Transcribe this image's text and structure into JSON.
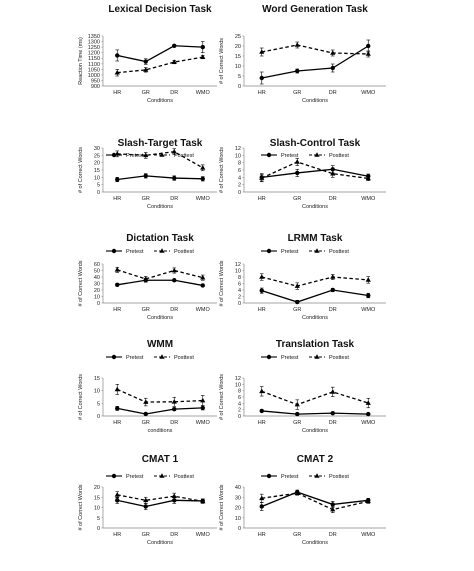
{
  "chart_data": [
    {
      "type": "line",
      "title": "Lexical Decision Task",
      "xlabel": "Conditions",
      "ylabel": "Reaction Time (ms)",
      "categories": [
        "HR",
        "GR",
        "DR",
        "WMO"
      ],
      "yticks": [
        900,
        950,
        1000,
        1050,
        1100,
        1150,
        1200,
        1250,
        1300,
        1350
      ],
      "ylim": [
        900,
        1350
      ],
      "series": [
        {
          "name": "",
          "style": "solid",
          "marker": "circle",
          "values": [
            1175,
            1120,
            1262,
            1250
          ],
          "errors": [
            50,
            25,
            10,
            50
          ]
        },
        {
          "name": "",
          "style": "dashed",
          "marker": "triangle",
          "values": [
            1020,
            1045,
            1115,
            1160
          ],
          "errors": [
            30,
            20,
            15,
            15
          ]
        }
      ],
      "legend": false
    },
    {
      "type": "line",
      "title": "Word Generation Task",
      "xlabel": "Conditions",
      "ylabel": "# of Correct Words",
      "categories": [
        "HR",
        "GR",
        "DR",
        "WMO"
      ],
      "yticks": [
        0,
        5,
        10,
        15,
        20,
        25
      ],
      "ylim": [
        0,
        25
      ],
      "series": [
        {
          "name": "Pretest",
          "style": "solid",
          "marker": "circle",
          "values": [
            4,
            7.5,
            9,
            20
          ],
          "errors": [
            3,
            1,
            2,
            3
          ]
        },
        {
          "name": "Posttest",
          "style": "dashed",
          "marker": "triangle",
          "values": [
            17,
            20.5,
            16.5,
            16
          ],
          "errors": [
            2,
            1.5,
            1.5,
            1.5
          ]
        }
      ],
      "legend": true
    },
    {
      "type": "line",
      "title": "Slash-Target Task",
      "xlabel": "Conditions",
      "ylabel": "# of Correct Words",
      "categories": [
        "HR",
        "GR",
        "DR",
        "WMO"
      ],
      "yticks": [
        0,
        5,
        10,
        15,
        20,
        25,
        30
      ],
      "ylim": [
        0,
        30
      ],
      "series": [
        {
          "name": "Pretest",
          "style": "solid",
          "marker": "circle",
          "values": [
            8.5,
            11,
            9.5,
            9
          ],
          "errors": [
            1.5,
            1.5,
            1.5,
            1.5
          ]
        },
        {
          "name": "Posttest",
          "style": "dashed",
          "marker": "triangle",
          "values": [
            26,
            25,
            27.5,
            16.5
          ],
          "errors": [
            2,
            2,
            2,
            2
          ]
        }
      ],
      "legend": true
    },
    {
      "type": "line",
      "title": "Slash-Control Task",
      "xlabel": "Conditions",
      "ylabel": "# of Correct Words",
      "categories": [
        "HR",
        "GR",
        "DR",
        "WMO"
      ],
      "yticks": [
        0,
        2,
        4,
        6,
        8,
        10,
        12
      ],
      "ylim": [
        0,
        12
      ],
      "series": [
        {
          "name": "Pretest",
          "style": "solid",
          "marker": "circle",
          "values": [
            4,
            5.2,
            6.2,
            4.3
          ],
          "errors": [
            1,
            1,
            1,
            0.6
          ]
        },
        {
          "name": "Posttest",
          "style": "dashed",
          "marker": "triangle",
          "values": [
            3.8,
            8.2,
            5,
            3.7
          ],
          "errors": [
            1,
            1,
            1,
            0.6
          ]
        }
      ],
      "legend": true
    },
    {
      "type": "line",
      "title": "Dictation Task",
      "xlabel": "Conditions",
      "ylabel": "# of Correct Words",
      "categories": [
        "HR",
        "GR",
        "DR",
        "WMO"
      ],
      "yticks": [
        0,
        10,
        20,
        30,
        40,
        50,
        60
      ],
      "ylim": [
        0,
        60
      ],
      "series": [
        {
          "name": "Pretest",
          "style": "solid",
          "marker": "circle",
          "values": [
            28,
            35,
            35,
            27
          ],
          "errors": [
            2,
            3,
            2,
            2
          ]
        },
        {
          "name": "Posttest",
          "style": "dashed",
          "marker": "triangle",
          "values": [
            51,
            37,
            50,
            39
          ],
          "errors": [
            4,
            4,
            4,
            4
          ]
        }
      ],
      "legend": true
    },
    {
      "type": "line",
      "title": "LRMM Task",
      "xlabel": "Conditions",
      "ylabel": "# of Correct Words",
      "categories": [
        "HR",
        "GR",
        "DR",
        "WMO"
      ],
      "yticks": [
        0,
        2,
        4,
        6,
        8,
        10,
        12
      ],
      "ylim": [
        0,
        12
      ],
      "series": [
        {
          "name": "Pretest",
          "style": "solid",
          "marker": "circle",
          "values": [
            3.8,
            0.3,
            4,
            2.3
          ],
          "errors": [
            0.8,
            0.5,
            0.5,
            0.7
          ]
        },
        {
          "name": "Posttest",
          "style": "dashed",
          "marker": "triangle",
          "values": [
            8,
            5.2,
            8,
            7.1
          ],
          "errors": [
            1,
            1,
            0.8,
            1
          ]
        }
      ],
      "legend": true
    },
    {
      "type": "line",
      "title": "WMM",
      "xlabel": "conditions",
      "ylabel": "# of Correct Words",
      "categories": [
        "HR",
        "GR",
        "DR",
        "WMO"
      ],
      "yticks": [
        0,
        5,
        10,
        15
      ],
      "ylim": [
        0,
        15
      ],
      "series": [
        {
          "name": "Pretest",
          "style": "solid",
          "marker": "circle",
          "values": [
            3,
            0.8,
            2.7,
            3.2
          ],
          "errors": [
            0.8,
            0.5,
            0.5,
            0.8
          ]
        },
        {
          "name": "Posttest",
          "style": "dashed",
          "marker": "triangle",
          "values": [
            10.5,
            5.5,
            5.6,
            6.1
          ],
          "errors": [
            2,
            1.5,
            1.8,
            2
          ]
        }
      ],
      "legend": true
    },
    {
      "type": "line",
      "title": "Translation Task",
      "xlabel": "Conditions",
      "ylabel": "# of Correct Words",
      "categories": [
        "HR",
        "GR",
        "DR",
        "WMO"
      ],
      "yticks": [
        0,
        2,
        4,
        6,
        8,
        10,
        12
      ],
      "ylim": [
        0,
        12
      ],
      "series": [
        {
          "name": "Pretest",
          "style": "solid",
          "marker": "circle",
          "values": [
            1.6,
            0.6,
            0.9,
            0.6
          ],
          "errors": [
            0.4,
            0.3,
            0.3,
            0.3
          ]
        },
        {
          "name": "Posttest",
          "style": "dashed",
          "marker": "triangle",
          "values": [
            7.8,
            3.6,
            7.6,
            4.1
          ],
          "errors": [
            1.5,
            1.5,
            1.5,
            1.5
          ]
        }
      ],
      "legend": true
    },
    {
      "type": "line",
      "title": "CMAT 1",
      "xlabel": "Conditions",
      "ylabel": "# of Correct Words",
      "categories": [
        "HR",
        "GR",
        "DR",
        "WMO"
      ],
      "yticks": [
        0,
        5,
        10,
        15,
        20
      ],
      "ylim": [
        0,
        20
      ],
      "series": [
        {
          "name": "Pretest",
          "style": "solid",
          "marker": "circle",
          "values": [
            13.5,
            10.5,
            13.5,
            13.2
          ],
          "errors": [
            1.5,
            1.5,
            1.5,
            1
          ]
        },
        {
          "name": "Posttest",
          "style": "dashed",
          "marker": "triangle",
          "values": [
            16.2,
            13.5,
            15.5,
            13
          ],
          "errors": [
            1.5,
            1.5,
            1.5,
            1
          ]
        }
      ],
      "legend": true
    },
    {
      "type": "line",
      "title": "CMAT 2",
      "xlabel": "Conditions",
      "ylabel": "# of Correct Words",
      "categories": [
        "HR",
        "GR",
        "DR",
        "WMO"
      ],
      "yticks": [
        0,
        10,
        20,
        30,
        40
      ],
      "ylim": [
        0,
        40
      ],
      "series": [
        {
          "name": "Pretest",
          "style": "solid",
          "marker": "circle",
          "values": [
            21,
            35,
            23,
            27
          ],
          "errors": [
            4,
            2,
            3,
            2
          ]
        },
        {
          "name": "Posttest",
          "style": "dashed",
          "marker": "triangle",
          "values": [
            29,
            34,
            18,
            26
          ],
          "errors": [
            4,
            2,
            3,
            2
          ]
        }
      ],
      "legend": true
    }
  ]
}
